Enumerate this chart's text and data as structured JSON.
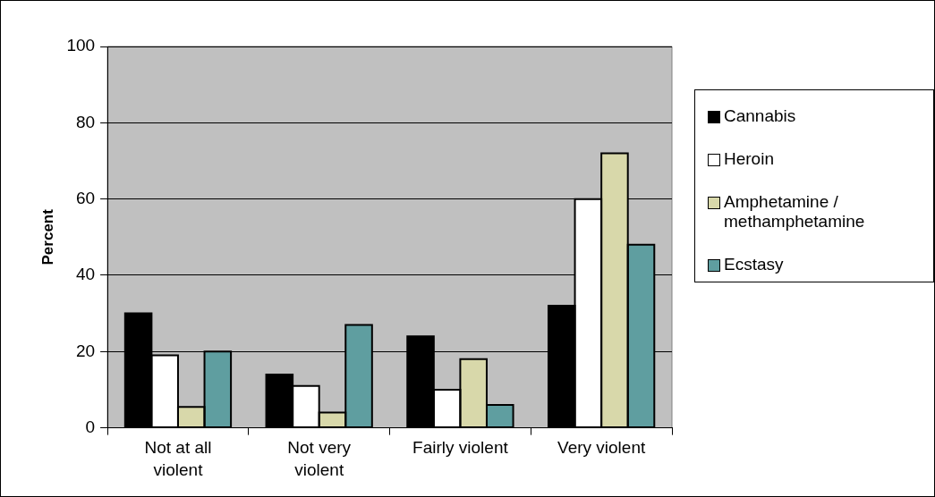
{
  "chart_data": {
    "type": "bar",
    "ylabel": "Percent",
    "categories": [
      "Not at all violent",
      "Not very violent",
      "Fairly violent",
      "Very violent"
    ],
    "series": [
      {
        "name": "Cannabis",
        "color": "#000000",
        "values": [
          30,
          14,
          24,
          32
        ]
      },
      {
        "name": "Heroin",
        "color": "#ffffff",
        "values": [
          19,
          11,
          10,
          60
        ]
      },
      {
        "name": "Amphetamine / methamphetamine",
        "color": "#d8d8aa",
        "values": [
          5.5,
          4,
          18,
          72
        ]
      },
      {
        "name": "Ecstasy",
        "color": "#5f9ea0",
        "values": [
          20,
          27,
          6,
          48
        ]
      }
    ],
    "ylim": [
      0,
      100
    ],
    "yticks": [
      0,
      20,
      40,
      60,
      80,
      100
    ],
    "grid": "y",
    "legend": "right"
  }
}
